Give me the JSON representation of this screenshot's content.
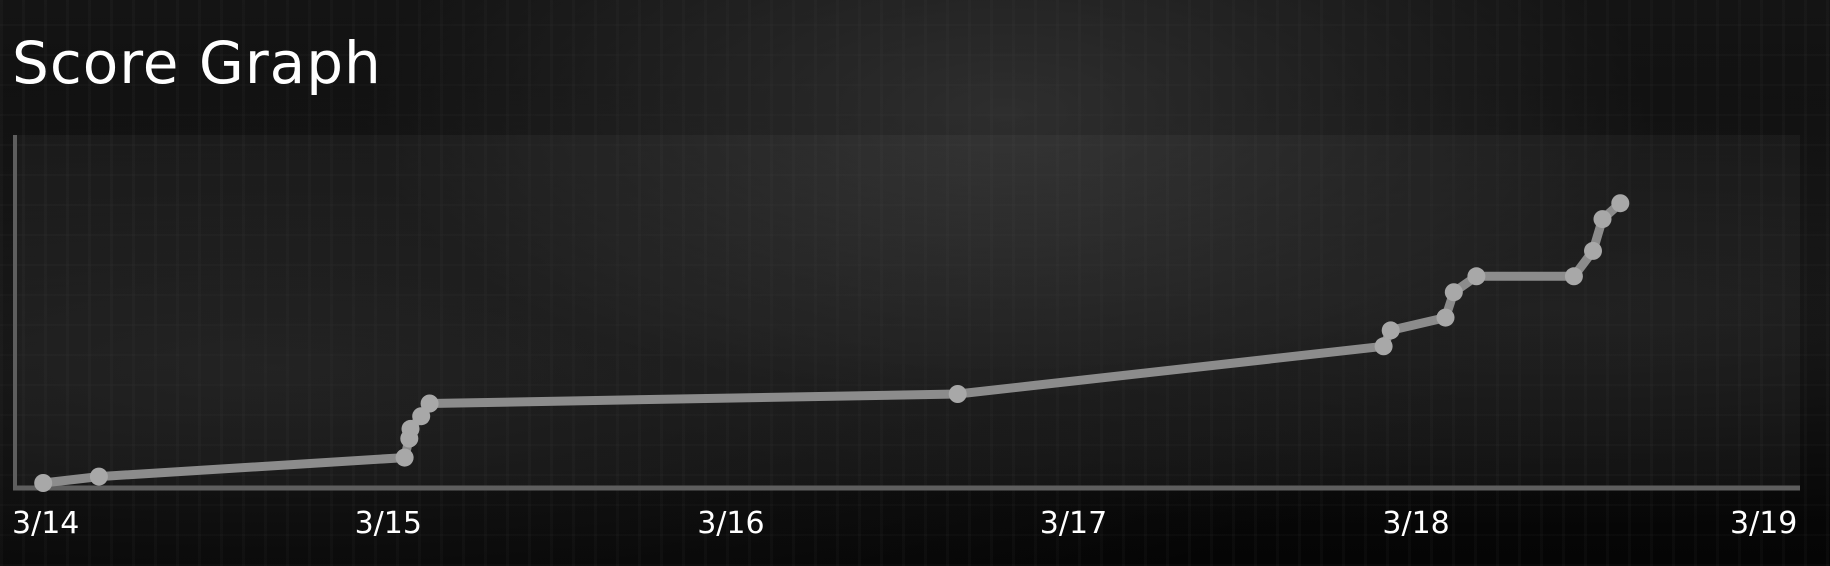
{
  "header": {
    "title": "Score Graph"
  },
  "chart_data": {
    "type": "line",
    "title": "Score Graph",
    "xlabel": "",
    "ylabel": "",
    "x_axis": {
      "type": "date",
      "ticks": [
        "3/14",
        "3/15",
        "3/16",
        "3/17",
        "3/18",
        "3/19"
      ],
      "range": [
        "3/14 00:00",
        "3/19 00:00"
      ]
    },
    "y_axis": {
      "tick_labels_shown": false,
      "range_relative": [
        0,
        1
      ]
    },
    "grid": false,
    "legend": "none",
    "colors": {
      "line": "#8c8c8c",
      "point": "#a8a8a8",
      "axis": "#5e5e5e",
      "text": "#ffffff"
    },
    "series": [
      {
        "points": [
          {
            "x": "3/14 00:26",
            "y": 0.0
          },
          {
            "x": "3/14 04:20",
            "y": 0.02
          },
          {
            "x": "3/15 01:45",
            "y": 0.08
          },
          {
            "x": "3/15 02:05",
            "y": 0.14
          },
          {
            "x": "3/15 02:10",
            "y": 0.17
          },
          {
            "x": "3/15 02:55",
            "y": 0.21
          },
          {
            "x": "3/15 03:30",
            "y": 0.25
          },
          {
            "x": "3/16 16:30",
            "y": 0.28
          },
          {
            "x": "3/17 22:20",
            "y": 0.43
          },
          {
            "x": "3/17 22:50",
            "y": 0.48
          },
          {
            "x": "3/18 02:40",
            "y": 0.52
          },
          {
            "x": "3/18 03:15",
            "y": 0.6
          },
          {
            "x": "3/18 04:50",
            "y": 0.65
          },
          {
            "x": "3/18 11:40",
            "y": 0.65
          },
          {
            "x": "3/18 13:00",
            "y": 0.73
          },
          {
            "x": "3/18 13:40",
            "y": 0.83
          },
          {
            "x": "3/18 14:55",
            "y": 0.88
          }
        ]
      }
    ]
  }
}
